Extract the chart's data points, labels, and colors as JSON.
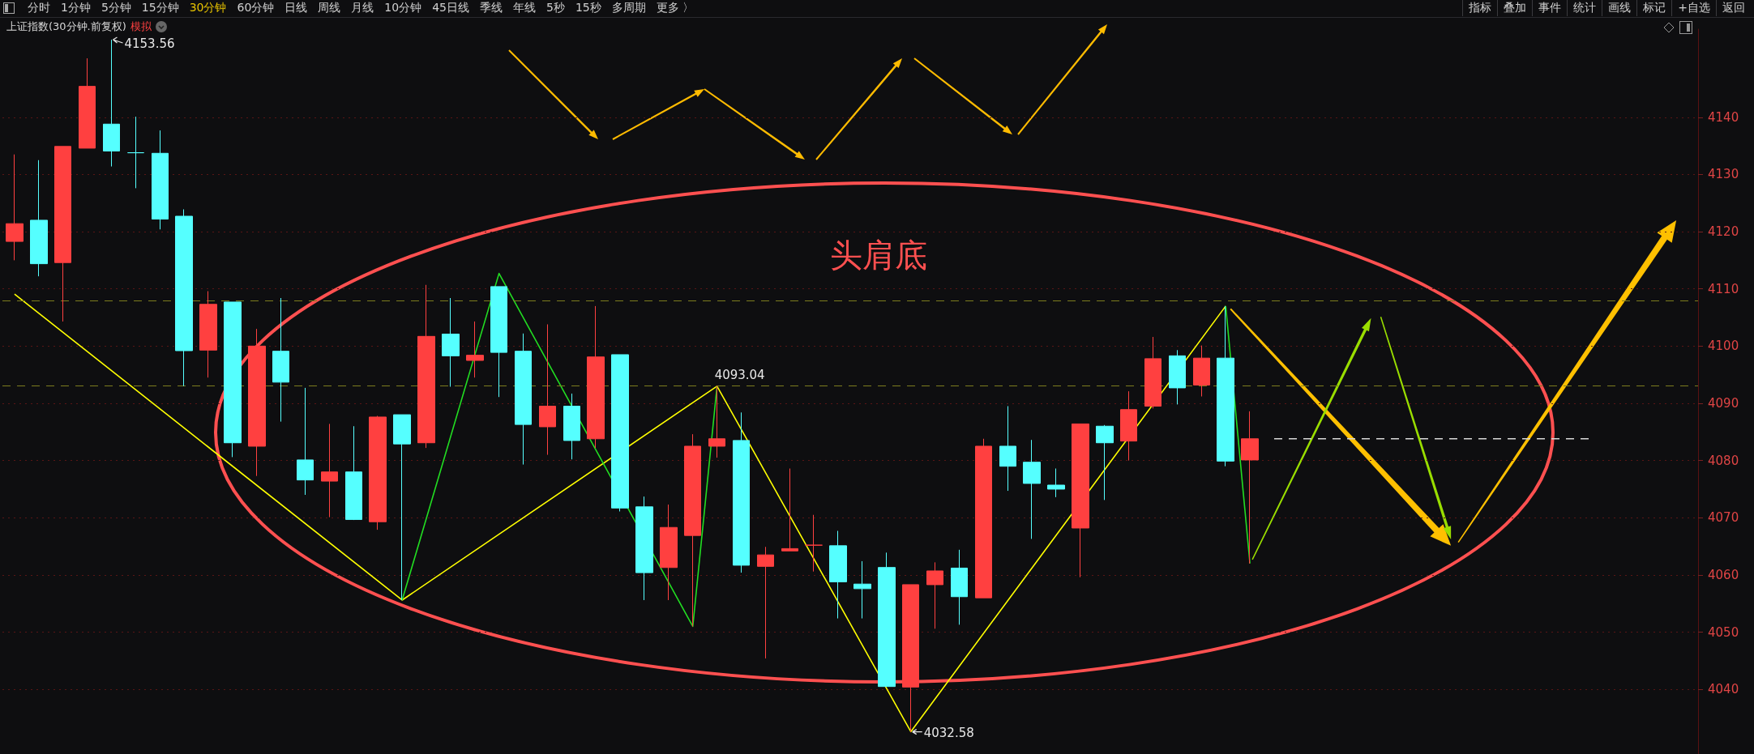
{
  "chart_data": {
    "type": "candlestick",
    "title": "上证指数(30分钟.前复权)",
    "subtitle": "模拟",
    "annotations": [
      "分时",
      "1分钟",
      "5分钟",
      "15分钟",
      "30分钟",
      "60分钟",
      "日线",
      "周线",
      "月线",
      "10分钟",
      "45日线",
      "季线",
      "年线",
      "5秒",
      "15秒",
      "多周期",
      "更多 〉",
      "指标",
      "叠加",
      "事件",
      "统计",
      "画线",
      "标记",
      "+自选",
      "返回",
      "头肩底",
      "4153.56",
      {
        "text": "4093.04",
        "y": 4093.04
      },
      "4032.58"
    ],
    "categories": [
      null,
      null,
      null,
      null,
      null,
      null,
      null,
      null,
      null,
      null,
      null,
      null,
      null,
      null,
      null,
      null,
      null,
      null,
      null,
      null,
      null,
      null,
      null,
      null,
      null,
      null,
      null,
      null,
      null,
      null,
      null,
      null,
      null,
      null,
      null,
      null,
      null,
      null,
      null,
      null,
      null,
      null,
      null,
      null,
      null,
      null,
      null,
      null,
      null,
      null,
      null,
      null,
      null,
      null,
      null,
      null,
      null,
      null,
      null,
      null,
      null,
      null,
      null,
      null,
      null,
      null,
      null,
      null,
      null,
      null
    ],
    "series": [
      {
        "ohlc": [
          [
            4118.3,
            4133.5,
            4115.0,
            4121.4
          ],
          [
            4122.0,
            4132.5,
            4112.2,
            4114.4
          ],
          [
            4114.6,
            4134.9,
            4104.3,
            4134.9
          ],
          [
            4134.6,
            4150.3,
            4134.6,
            4145.4
          ],
          [
            4138.8,
            4153.56,
            4131.4,
            4134.1
          ],
          [
            4133.8,
            4140.1,
            4127.6,
            4133.8
          ],
          [
            4133.7,
            4137.7,
            4120.4,
            4122.2
          ],
          [
            4122.7,
            4123.9,
            4093.0,
            4099.2
          ],
          [
            4099.3,
            4109.6,
            4094.5,
            4107.3
          ],
          [
            4107.7,
            4107.7,
            4080.6,
            4083.1
          ],
          [
            4082.5,
            4103.0,
            4077.3,
            4100.0
          ],
          [
            4099.1,
            4108.4,
            4086.8,
            4093.7
          ],
          [
            4080.1,
            4092.7,
            4074.0,
            4076.6
          ],
          [
            4076.4,
            4086.4,
            4070.1,
            4078.0
          ],
          [
            4078.0,
            4086.0,
            4069.6,
            4069.7
          ],
          [
            4069.3,
            4087.8,
            4067.9,
            4087.6
          ],
          [
            4088.0,
            4088.0,
            4055.6,
            4082.9
          ],
          [
            4083.1,
            4110.7,
            4082.2,
            4101.7
          ],
          [
            4102.1,
            4108.4,
            4092.9,
            4098.3
          ],
          [
            4097.5,
            4104.3,
            4094.5,
            4098.4
          ],
          [
            4110.4,
            4110.4,
            4091.1,
            4098.9
          ],
          [
            4099.1,
            4102.2,
            4079.3,
            4086.3
          ],
          [
            4085.9,
            4103.8,
            4081.0,
            4089.5
          ],
          [
            4089.5,
            4091.7,
            4080.2,
            4083.5
          ],
          [
            4083.8,
            4107.0,
            4082.2,
            4098.1
          ],
          [
            4098.5,
            4098.5,
            4071.1,
            4071.7
          ],
          [
            4071.9,
            4073.7,
            4055.6,
            4060.4
          ],
          [
            4061.3,
            4072.3,
            4055.6,
            4068.3
          ],
          [
            4066.9,
            4084.6,
            4051.0,
            4082.5
          ],
          [
            4082.5,
            4093.04,
            4080.5,
            4083.8
          ],
          [
            4083.5,
            4088.4,
            4060.4,
            4061.7
          ],
          [
            4061.5,
            4064.9,
            4045.4,
            4063.5
          ],
          [
            4064.2,
            4078.6,
            4064.2,
            4064.6
          ],
          [
            4065.2,
            4070.5,
            4060.6,
            4065.2
          ],
          [
            4065.1,
            4067.7,
            4052.4,
            4058.8
          ],
          [
            4058.4,
            4062.4,
            4052.4,
            4057.6
          ],
          [
            4061.3,
            4063.9,
            4040.5,
            4040.5
          ],
          [
            4040.4,
            4058.3,
            4032.58,
            4058.3
          ],
          [
            4058.3,
            4062.2,
            4050.6,
            4060.7
          ],
          [
            4061.2,
            4064.4,
            4051.3,
            4056.2
          ],
          [
            4056.0,
            4083.8,
            4056.0,
            4082.5
          ],
          [
            4082.5,
            4089.5,
            4074.7,
            4079.0
          ],
          [
            4079.7,
            4083.6,
            4066.3,
            4076.0
          ],
          [
            4075.7,
            4078.6,
            4073.6,
            4075.0
          ],
          [
            4068.2,
            4086.4,
            4059.6,
            4086.4
          ],
          [
            4086.0,
            4086.2,
            4073.1,
            4083.1
          ],
          [
            4083.4,
            4092.1,
            4080.0,
            4088.9
          ],
          [
            4089.5,
            4101.6,
            4089.1,
            4097.8
          ],
          [
            4098.3,
            4099.3,
            4089.8,
            4092.7
          ],
          [
            4093.2,
            4100.1,
            4091.2,
            4097.9
          ],
          [
            4097.9,
            4107.0,
            4079.0,
            4079.9
          ],
          [
            4080.1,
            4088.6,
            4062.0,
            4083.8
          ],
          null,
          null,
          null,
          null,
          null,
          null,
          null,
          null,
          null,
          null,
          null,
          null,
          null,
          null,
          null,
          null,
          null,
          null
        ],
        "colors": [
          "#ff4040",
          "#55ffff",
          "#ff4040",
          "#ff4040",
          "#55ffff",
          "#55ffff",
          "#55ffff",
          "#55ffff",
          "#ff4040",
          "#55ffff",
          "#ff4040",
          "#55ffff",
          "#55ffff",
          "#ff4040",
          "#55ffff",
          "#ff4040",
          "#55ffff",
          "#ff4040",
          "#55ffff",
          "#ff4040",
          "#55ffff",
          "#55ffff",
          "#ff4040",
          "#55ffff",
          "#ff4040",
          "#55ffff",
          "#55ffff",
          "#ff4040",
          "#ff4040",
          "#ff4040",
          "#55ffff",
          "#ff4040",
          "#ff4040",
          "#ff4040",
          "#55ffff",
          "#55ffff",
          "#55ffff",
          "#ff4040",
          "#ff4040",
          "#55ffff",
          "#ff4040",
          "#55ffff",
          "#55ffff",
          "#55ffff",
          "#ff4040",
          "#55ffff",
          "#ff4040",
          "#ff4040",
          "#55ffff",
          "#ff4040",
          "#55ffff",
          "#ff4040",
          null,
          null,
          null,
          null,
          null,
          null,
          null,
          null,
          null,
          null,
          null,
          null,
          null,
          null,
          null,
          null,
          null,
          null
        ]
      },
      {
        "type": "line",
        "color": "#ffff00",
        "values": [
          4109.1,
          null,
          null,
          null,
          null,
          null,
          null,
          null,
          null,
          null,
          null,
          null,
          null,
          null,
          null,
          null,
          4055.6,
          null,
          null,
          null,
          null,
          null,
          null,
          null,
          null,
          null,
          null,
          null,
          null,
          4093.0,
          null,
          null,
          null,
          null,
          null,
          null,
          null,
          4032.6,
          null,
          null,
          null,
          null,
          null,
          null,
          null,
          null,
          null,
          null,
          null,
          null,
          4107.0,
          null,
          null,
          null,
          null,
          null,
          null,
          null,
          null,
          null,
          null,
          null,
          null,
          null,
          null,
          null,
          null,
          null,
          null,
          null
        ]
      },
      {
        "type": "line",
        "color": "#22dd22",
        "values": [
          null,
          null,
          null,
          null,
          null,
          null,
          null,
          null,
          null,
          null,
          null,
          null,
          null,
          null,
          null,
          null,
          4055.6,
          null,
          null,
          null,
          4112.7,
          null,
          null,
          null,
          null,
          null,
          null,
          null,
          4051.0,
          4093.0,
          null,
          null,
          null,
          null,
          null,
          null,
          null,
          null,
          null,
          null,
          null,
          null,
          null,
          null,
          null,
          null,
          null,
          null,
          null,
          null,
          null,
          null,
          null,
          null,
          null,
          null,
          null,
          null,
          null,
          null,
          null,
          null,
          null,
          null,
          null,
          null,
          null,
          null,
          null,
          null
        ]
      },
      {
        "type": "line",
        "color": "#22dd22",
        "values": [
          null,
          null,
          null,
          null,
          null,
          null,
          null,
          null,
          null,
          null,
          null,
          null,
          null,
          null,
          null,
          null,
          null,
          null,
          null,
          null,
          null,
          null,
          null,
          null,
          null,
          null,
          null,
          null,
          null,
          null,
          null,
          null,
          null,
          null,
          null,
          null,
          null,
          null,
          null,
          null,
          null,
          null,
          null,
          null,
          null,
          null,
          null,
          null,
          null,
          null,
          4107.0,
          4062.0,
          null,
          null,
          null,
          null,
          null,
          null,
          null,
          null,
          null,
          null,
          null,
          null,
          null,
          null,
          null,
          null,
          null,
          null
        ]
      },
      {
        "type": "line",
        "color": "#d8d8d8",
        "line_style": "dashed",
        "values": [
          null,
          null,
          null,
          null,
          null,
          null,
          null,
          null,
          null,
          null,
          null,
          null,
          null,
          null,
          null,
          null,
          null,
          null,
          null,
          null,
          null,
          null,
          null,
          null,
          null,
          null,
          null,
          null,
          null,
          null,
          null,
          null,
          null,
          null,
          null,
          null,
          null,
          null,
          null,
          null,
          null,
          null,
          null,
          null,
          null,
          null,
          null,
          null,
          null,
          null,
          null,
          null,
          4083.8,
          4083.8,
          4083.8,
          4083.8,
          4083.8,
          4083.8,
          4083.8,
          4083.8,
          4083.8,
          4083.8,
          4083.8,
          4083.8,
          4083.8,
          4083.8,
          null,
          null,
          null,
          null
        ]
      }
    ],
    "ref_lines": [
      {
        "axis": "y",
        "value": 4107.9,
        "color": "#7d7d1e",
        "line_style": "dashed"
      },
      {
        "axis": "y",
        "value": 4093.04,
        "color": "#7d7d1e",
        "line_style": "dashed"
      }
    ],
    "ylim": [
      4028.7,
      4155.4
    ],
    "yticks": [
      4040,
      4050,
      4060,
      4070,
      4080,
      4090,
      4100,
      4110,
      4120,
      4130,
      4140
    ],
    "grid": "y",
    "tick_labels": "y",
    "marker": "none",
    "line_style": "solid"
  }
}
